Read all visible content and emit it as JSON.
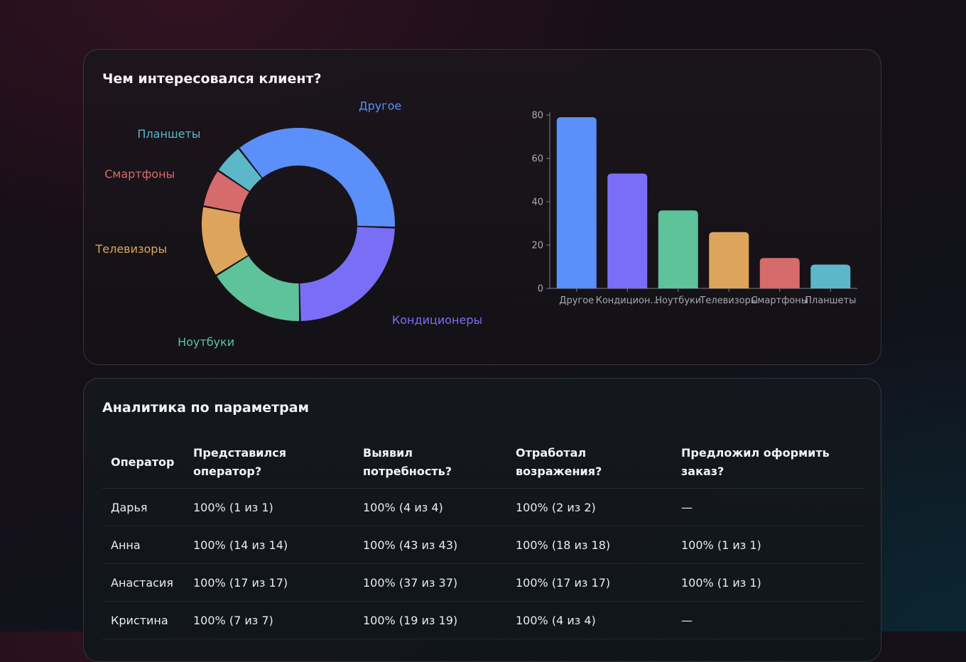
{
  "interest_card": {
    "title": "Чем интересовался клиент?"
  },
  "chart_data": [
    {
      "type": "pie",
      "style": "donut",
      "labels": [
        "Другое",
        "Кондиционеры",
        "Ноутбуки",
        "Телевизоры",
        "Смартфоны",
        "Планшеты"
      ],
      "values": [
        79,
        53,
        36,
        26,
        14,
        11
      ],
      "colors": [
        "#5b8ff9",
        "#7b6ef6",
        "#5ec29b",
        "#dca55b",
        "#d66b6b",
        "#5cb8c8"
      ]
    },
    {
      "type": "bar",
      "categories": [
        "Другое",
        "Кондицион...",
        "Ноутбуки",
        "Телевизоры",
        "Смартфоны",
        "Планшеты"
      ],
      "values": [
        79,
        53,
        36,
        26,
        14,
        11
      ],
      "colors": [
        "#5b8ff9",
        "#7b6ef6",
        "#5ec29b",
        "#dca55b",
        "#d66b6b",
        "#5cb8c8"
      ],
      "ylim": [
        0,
        80
      ],
      "yticks": [
        0,
        20,
        40,
        60,
        80
      ],
      "grid": false
    }
  ],
  "analytics": {
    "title": "Аналитика по параметрам",
    "columns": [
      "Оператор",
      "Представился оператор?",
      "Выявил потребность?",
      "Отработал возражения?",
      "Предложил оформить заказ?"
    ],
    "rows": [
      [
        "Дарья",
        "100% (1 из 1)",
        "100% (4 из 4)",
        "100% (2 из 2)",
        "—"
      ],
      [
        "Анна",
        "100% (14 из 14)",
        "100% (43 из 43)",
        "100% (18 из 18)",
        "100% (1 из 1)"
      ],
      [
        "Анастасия",
        "100% (17 из 17)",
        "100% (37 из 37)",
        "100% (17 из 17)",
        "100% (1 из 1)"
      ],
      [
        "Кристина",
        "100% (7 из 7)",
        "100% (19 из 19)",
        "100% (4 из 4)",
        "—"
      ]
    ]
  }
}
